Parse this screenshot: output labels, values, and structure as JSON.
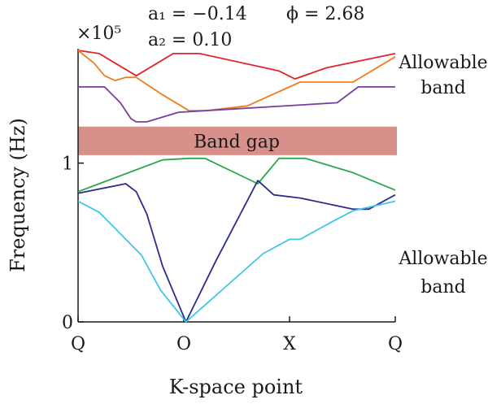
{
  "chart_data": {
    "type": "line",
    "title": "",
    "xlabel": "K-space point",
    "ylabel": "Frequency (Hz)",
    "scale_label": "×10⁵",
    "x_ticks": [
      "Q",
      "O",
      "X",
      "Q"
    ],
    "y_ticks": [
      {
        "value": 0,
        "label": "0"
      },
      {
        "value": 1,
        "label": "1"
      }
    ],
    "xlim": [
      0,
      3
    ],
    "ylim": [
      0,
      1.72
    ],
    "params": [
      {
        "text": "a₁ = −0.14"
      },
      {
        "text": "ϕ = 2.68"
      },
      {
        "text": "a₂ = 0.10"
      }
    ],
    "band_gap": {
      "label": "Band gap",
      "y_range": [
        1.05,
        1.23
      ],
      "color": "#d8908a"
    },
    "annotations": [
      {
        "lines": [
          "Allowable",
          "band"
        ],
        "position": "upper-right"
      },
      {
        "lines": [
          "Allowable",
          "band"
        ],
        "position": "lower-right"
      }
    ],
    "series": [
      {
        "color": "#e0242a",
        "points": [
          [
            0,
            1.71
          ],
          [
            0.2,
            1.69
          ],
          [
            0.55,
            1.55
          ],
          [
            0.9,
            1.69
          ],
          [
            1.15,
            1.69
          ],
          [
            1.9,
            1.58
          ],
          [
            2.05,
            1.53
          ],
          [
            2.35,
            1.6
          ],
          [
            3,
            1.69
          ]
        ]
      },
      {
        "color": "#f07d1e",
        "points": [
          [
            0,
            1.71
          ],
          [
            0.15,
            1.63
          ],
          [
            0.25,
            1.55
          ],
          [
            0.35,
            1.52
          ],
          [
            0.45,
            1.54
          ],
          [
            0.55,
            1.54
          ],
          [
            0.8,
            1.43
          ],
          [
            1.05,
            1.33
          ],
          [
            1.2,
            1.33
          ],
          [
            1.6,
            1.36
          ],
          [
            2.1,
            1.51
          ],
          [
            2.6,
            1.51
          ],
          [
            3,
            1.67
          ]
        ]
      },
      {
        "color": "#7a3ea0",
        "points": [
          [
            0,
            1.48
          ],
          [
            0.25,
            1.48
          ],
          [
            0.4,
            1.38
          ],
          [
            0.5,
            1.28
          ],
          [
            0.55,
            1.26
          ],
          [
            0.65,
            1.26
          ],
          [
            0.95,
            1.32
          ],
          [
            1.2,
            1.33
          ],
          [
            2.45,
            1.38
          ],
          [
            2.65,
            1.48
          ],
          [
            3,
            1.48
          ]
        ]
      },
      {
        "color": "#2aa84a",
        "points": [
          [
            0,
            0.82
          ],
          [
            0.8,
            1.02
          ],
          [
            1.05,
            1.03
          ],
          [
            1.2,
            1.03
          ],
          [
            1.7,
            0.87
          ],
          [
            1.9,
            1.03
          ],
          [
            2.15,
            1.03
          ],
          [
            2.6,
            0.94
          ],
          [
            3,
            0.83
          ]
        ]
      },
      {
        "color": "#2b2d8c",
        "points": [
          [
            0,
            0.81
          ],
          [
            0.45,
            0.87
          ],
          [
            0.55,
            0.82
          ],
          [
            0.65,
            0.68
          ],
          [
            0.8,
            0.35
          ],
          [
            1.02,
            0
          ],
          [
            1.3,
            0.38
          ],
          [
            1.7,
            0.89
          ],
          [
            1.85,
            0.8
          ],
          [
            2.1,
            0.78
          ],
          [
            2.6,
            0.71
          ],
          [
            2.75,
            0.71
          ],
          [
            3,
            0.8
          ]
        ]
      },
      {
        "color": "#3ec7ea",
        "points": [
          [
            0,
            0.76
          ],
          [
            0.2,
            0.69
          ],
          [
            0.6,
            0.42
          ],
          [
            0.78,
            0.2
          ],
          [
            1.02,
            0
          ],
          [
            1.75,
            0.43
          ],
          [
            2.0,
            0.52
          ],
          [
            2.1,
            0.52
          ],
          [
            2.4,
            0.63
          ],
          [
            2.6,
            0.7
          ],
          [
            3,
            0.76
          ]
        ]
      }
    ]
  }
}
